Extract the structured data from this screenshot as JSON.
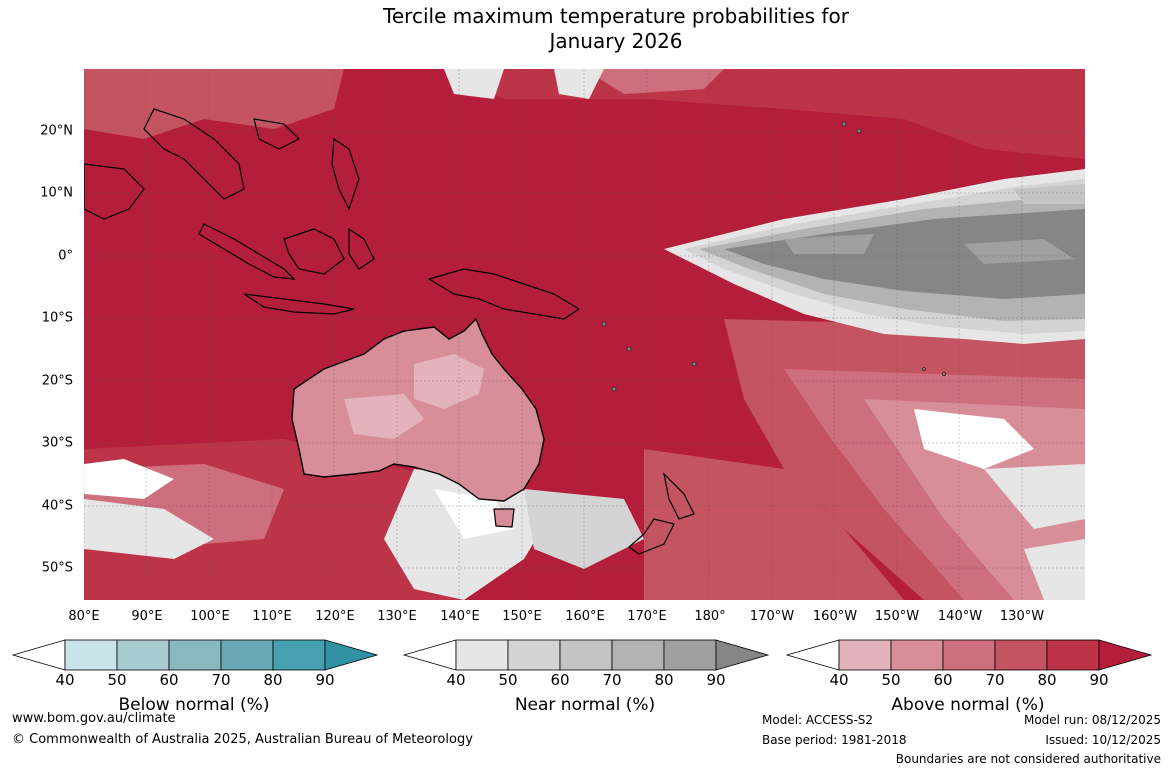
{
  "title": {
    "line1": "Tercile maximum temperature probabilities for",
    "line2": "January 2026"
  },
  "map": {
    "lat_labels": [
      "20°N",
      "10°N",
      "0°",
      "10°S",
      "20°S",
      "30°S",
      "40°S",
      "50°S"
    ],
    "lon_labels": [
      "80°E",
      "90°E",
      "100°E",
      "110°E",
      "120°E",
      "130°E",
      "140°E",
      "150°E",
      "160°E",
      "170°E",
      "180°",
      "170°W",
      "160°W",
      "150°W",
      "140°W",
      "130°W"
    ]
  },
  "legends": [
    {
      "title": "Below normal (%)",
      "ticks": [
        "40",
        "50",
        "60",
        "70",
        "80",
        "90"
      ],
      "colors": [
        "#ffffff",
        "#c9e3ea",
        "#a8cbd1",
        "#8ab8c0",
        "#67a8b4",
        "#46a0b0",
        "#3192a3"
      ]
    },
    {
      "title": "Near normal (%)",
      "ticks": [
        "40",
        "50",
        "60",
        "70",
        "80",
        "90"
      ],
      "colors": [
        "#ffffff",
        "#e6e6e6",
        "#d4d4d4",
        "#c4c4c4",
        "#b3b3b3",
        "#a0a0a0",
        "#868686"
      ]
    },
    {
      "title": "Above normal (%)",
      "ticks": [
        "40",
        "50",
        "60",
        "70",
        "80",
        "90"
      ],
      "colors": [
        "#ffffff",
        "#e2b3bb",
        "#d88e99",
        "#cd6f7c",
        "#c45461",
        "#bd3449",
        "#b41e3a"
      ]
    }
  ],
  "footer": {
    "url": "www.bom.gov.au/climate",
    "copyright": "© Commonwealth of Australia 2025, Australian Bureau of Meteorology",
    "model": "Model: ACCESS-S2",
    "base_period": "Base period: 1981-2018",
    "model_run": "Model run: 08/12/2025",
    "issued": "Issued: 10/12/2025",
    "disclaimer": "Boundaries are not considered authoritative"
  }
}
